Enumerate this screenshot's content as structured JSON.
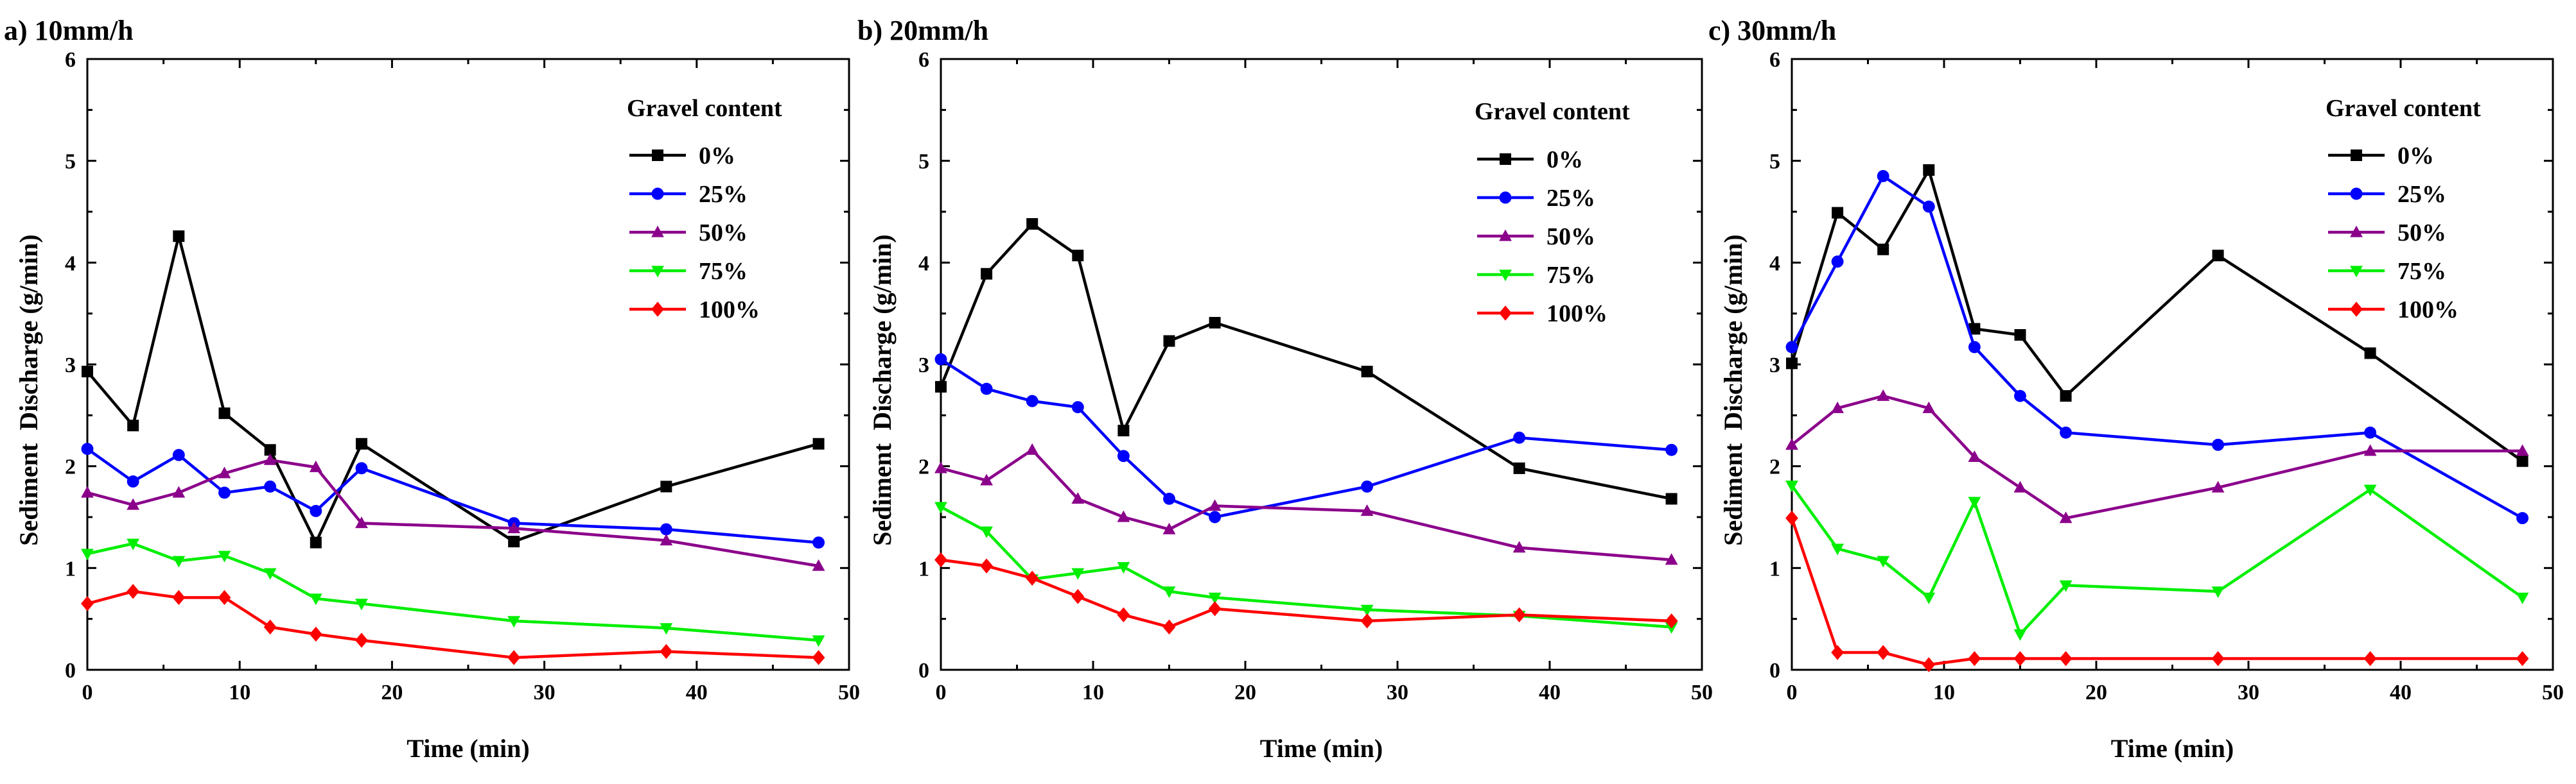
{
  "figure": {
    "panel_labels": [
      "a) 10mm/h",
      "b) 20mm/h",
      "c) 30mm/h"
    ],
    "legend_title": "Gravel content"
  },
  "chart_data": [
    {
      "type": "line",
      "title": "a) 10mm/h",
      "xlabel": "Time (min)",
      "ylabel": "Sediment  Discharge (g/min)",
      "xlim": [
        0,
        50
      ],
      "ylim": [
        0,
        6
      ],
      "xticks": [
        0,
        10,
        20,
        30,
        40,
        50
      ],
      "yticks": [
        0,
        1,
        2,
        3,
        4,
        5,
        6
      ],
      "legend_title": "Gravel content",
      "x": [
        0,
        3,
        6,
        9,
        12,
        15,
        18,
        28,
        38,
        48
      ],
      "series": [
        {
          "name": "0%",
          "color": "#000000",
          "marker": "square",
          "values": [
            2.93,
            2.4,
            4.26,
            2.52,
            2.16,
            1.25,
            2.22,
            1.26,
            1.8,
            2.22
          ]
        },
        {
          "name": "25%",
          "color": "#0000ff",
          "marker": "circle",
          "values": [
            2.17,
            1.85,
            2.11,
            1.74,
            1.8,
            1.56,
            1.98,
            1.44,
            1.38,
            1.25
          ]
        },
        {
          "name": "50%",
          "color": "#8b008b",
          "marker": "triangle-up",
          "values": [
            1.74,
            1.62,
            1.74,
            1.93,
            2.06,
            1.99,
            1.44,
            1.39,
            1.27,
            1.02
          ]
        },
        {
          "name": "75%",
          "color": "#00ee00",
          "marker": "triangle-down",
          "values": [
            1.14,
            1.24,
            1.07,
            1.12,
            0.95,
            0.7,
            0.65,
            0.48,
            0.41,
            0.29
          ]
        },
        {
          "name": "100%",
          "color": "#ff0000",
          "marker": "diamond",
          "values": [
            0.65,
            0.77,
            0.71,
            0.71,
            0.42,
            0.35,
            0.29,
            0.12,
            0.18,
            0.12
          ]
        }
      ]
    },
    {
      "type": "line",
      "title": "b) 20mm/h",
      "xlabel": "Time (min)",
      "ylabel": "Sediment  Discharge (g/min)",
      "xlim": [
        0,
        50
      ],
      "ylim": [
        0,
        6
      ],
      "xticks": [
        0,
        10,
        20,
        30,
        40,
        50
      ],
      "yticks": [
        0,
        1,
        2,
        3,
        4,
        5,
        6
      ],
      "legend_title": "Gravel content",
      "x": [
        0,
        3,
        6,
        9,
        12,
        15,
        18,
        28,
        38,
        48
      ],
      "series": [
        {
          "name": "0%",
          "color": "#000000",
          "marker": "square",
          "values": [
            2.78,
            3.89,
            4.38,
            4.07,
            2.35,
            3.23,
            3.41,
            2.93,
            1.98,
            1.68
          ]
        },
        {
          "name": "25%",
          "color": "#0000ff",
          "marker": "circle",
          "values": [
            3.05,
            2.76,
            2.64,
            2.58,
            2.1,
            1.68,
            1.5,
            1.8,
            2.28,
            2.16
          ]
        },
        {
          "name": "50%",
          "color": "#8b008b",
          "marker": "triangle-up",
          "values": [
            1.98,
            1.86,
            2.16,
            1.68,
            1.5,
            1.38,
            1.61,
            1.56,
            1.2,
            1.08
          ]
        },
        {
          "name": "75%",
          "color": "#00ee00",
          "marker": "triangle-down",
          "values": [
            1.6,
            1.36,
            0.89,
            0.95,
            1.01,
            0.77,
            0.71,
            0.59,
            0.53,
            0.42
          ]
        },
        {
          "name": "100%",
          "color": "#ff0000",
          "marker": "diamond",
          "values": [
            1.08,
            1.02,
            0.9,
            0.72,
            0.54,
            0.42,
            0.6,
            0.48,
            0.54,
            0.48
          ]
        }
      ]
    },
    {
      "type": "line",
      "title": "c) 30mm/h",
      "xlabel": "Time (min)",
      "ylabel": "Sediment  Discharge (g/min)",
      "xlim": [
        0,
        50
      ],
      "ylim": [
        0,
        6
      ],
      "xticks": [
        0,
        10,
        20,
        30,
        40,
        50
      ],
      "yticks": [
        0,
        1,
        2,
        3,
        4,
        5,
        6
      ],
      "legend_title": "Gravel content",
      "x": [
        0,
        3,
        6,
        9,
        12,
        15,
        18,
        28,
        38,
        48
      ],
      "series": [
        {
          "name": "0%",
          "color": "#000000",
          "marker": "square",
          "values": [
            3.01,
            4.49,
            4.13,
            4.91,
            3.35,
            3.29,
            2.69,
            4.07,
            3.11,
            2.05
          ]
        },
        {
          "name": "25%",
          "color": "#0000ff",
          "marker": "circle",
          "values": [
            3.17,
            4.01,
            4.85,
            4.55,
            3.17,
            2.69,
            2.33,
            2.21,
            2.33,
            1.49
          ]
        },
        {
          "name": "50%",
          "color": "#8b008b",
          "marker": "triangle-up",
          "values": [
            2.21,
            2.57,
            2.69,
            2.57,
            2.09,
            1.79,
            1.49,
            1.79,
            2.15,
            2.15
          ]
        },
        {
          "name": "75%",
          "color": "#00ee00",
          "marker": "triangle-down",
          "values": [
            1.81,
            1.19,
            1.07,
            0.71,
            1.65,
            0.35,
            0.83,
            0.77,
            1.77,
            0.71
          ]
        },
        {
          "name": "100%",
          "color": "#ff0000",
          "marker": "diamond",
          "values": [
            1.49,
            0.17,
            0.17,
            0.05,
            0.11,
            0.11,
            0.11,
            0.11,
            0.11,
            0.11
          ]
        }
      ]
    }
  ]
}
